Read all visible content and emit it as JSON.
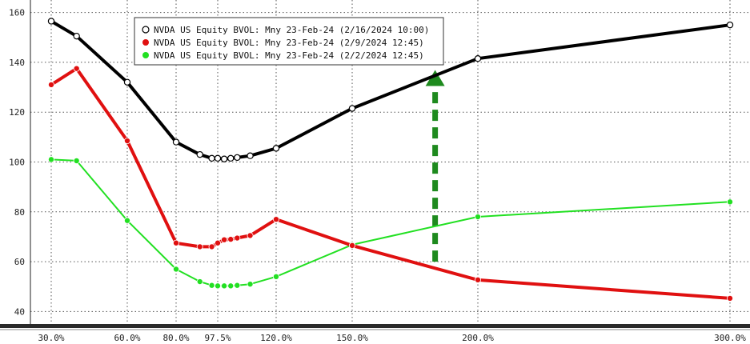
{
  "chart_data": {
    "type": "line",
    "title": "",
    "xlabel": "",
    "ylabel": "",
    "ylim": [
      35,
      165
    ],
    "grid": true,
    "legend_position": "top-center",
    "x_ticks": [
      {
        "label": "30.0%",
        "value": 30
      },
      {
        "label": "60.0%",
        "value": 60
      },
      {
        "label": "80.0%",
        "value": 80
      },
      {
        "label": "97.5%",
        "value": 97.5
      },
      {
        "label": "120.0%",
        "value": 120
      },
      {
        "label": "150.0%",
        "value": 150
      },
      {
        "label": "200.0%",
        "value": 200
      },
      {
        "label": "300.0%",
        "value": 300
      }
    ],
    "y_ticks": [
      40,
      60,
      80,
      100,
      120,
      140,
      160
    ],
    "series": [
      {
        "name": "NVDA US Equity BVOL: Mny 23-Feb-24 (2/16/2024 10:00)",
        "color": "#000000",
        "marker": "open-circle",
        "x": [
          30,
          40,
          60,
          80,
          90,
          95,
          97.5,
          100,
          102.5,
          105,
          110,
          120,
          150,
          200,
          300
        ],
        "y": [
          156.5,
          150.5,
          132,
          108,
          103,
          101.5,
          101.5,
          101.2,
          101.5,
          101.8,
          102.5,
          105.5,
          121.5,
          141.5,
          155
        ]
      },
      {
        "name": "NVDA US Equity BVOL: Mny 23-Feb-24 (2/9/2024 12:45)",
        "color": "#e01010",
        "marker": "filled-circle",
        "x": [
          30,
          40,
          60,
          80,
          90,
          95,
          97.5,
          100,
          102.5,
          105,
          110,
          120,
          150,
          200,
          300
        ],
        "y": [
          131,
          137.5,
          108.5,
          67.5,
          66,
          66,
          67.5,
          68.8,
          69,
          69.5,
          70.5,
          77,
          66.5,
          52.7,
          45.3
        ]
      },
      {
        "name": "NVDA US Equity BVOL: Mny 23-Feb-24 (2/2/2024 12:45)",
        "color": "#22e022",
        "marker": "filled-circle",
        "x": [
          30,
          40,
          60,
          80,
          90,
          95,
          97.5,
          100,
          102.5,
          105,
          110,
          120,
          150,
          200,
          300
        ],
        "y": [
          101,
          100.5,
          76.5,
          57,
          52,
          50.5,
          50.3,
          50.3,
          50.3,
          50.5,
          51,
          54,
          66.8,
          78,
          84
        ]
      }
    ],
    "annotations": [
      {
        "type": "arrow",
        "style": "dashed",
        "color": "#1e8a1e",
        "x": 183,
        "y_from": 60,
        "y_to": 135
      }
    ]
  }
}
